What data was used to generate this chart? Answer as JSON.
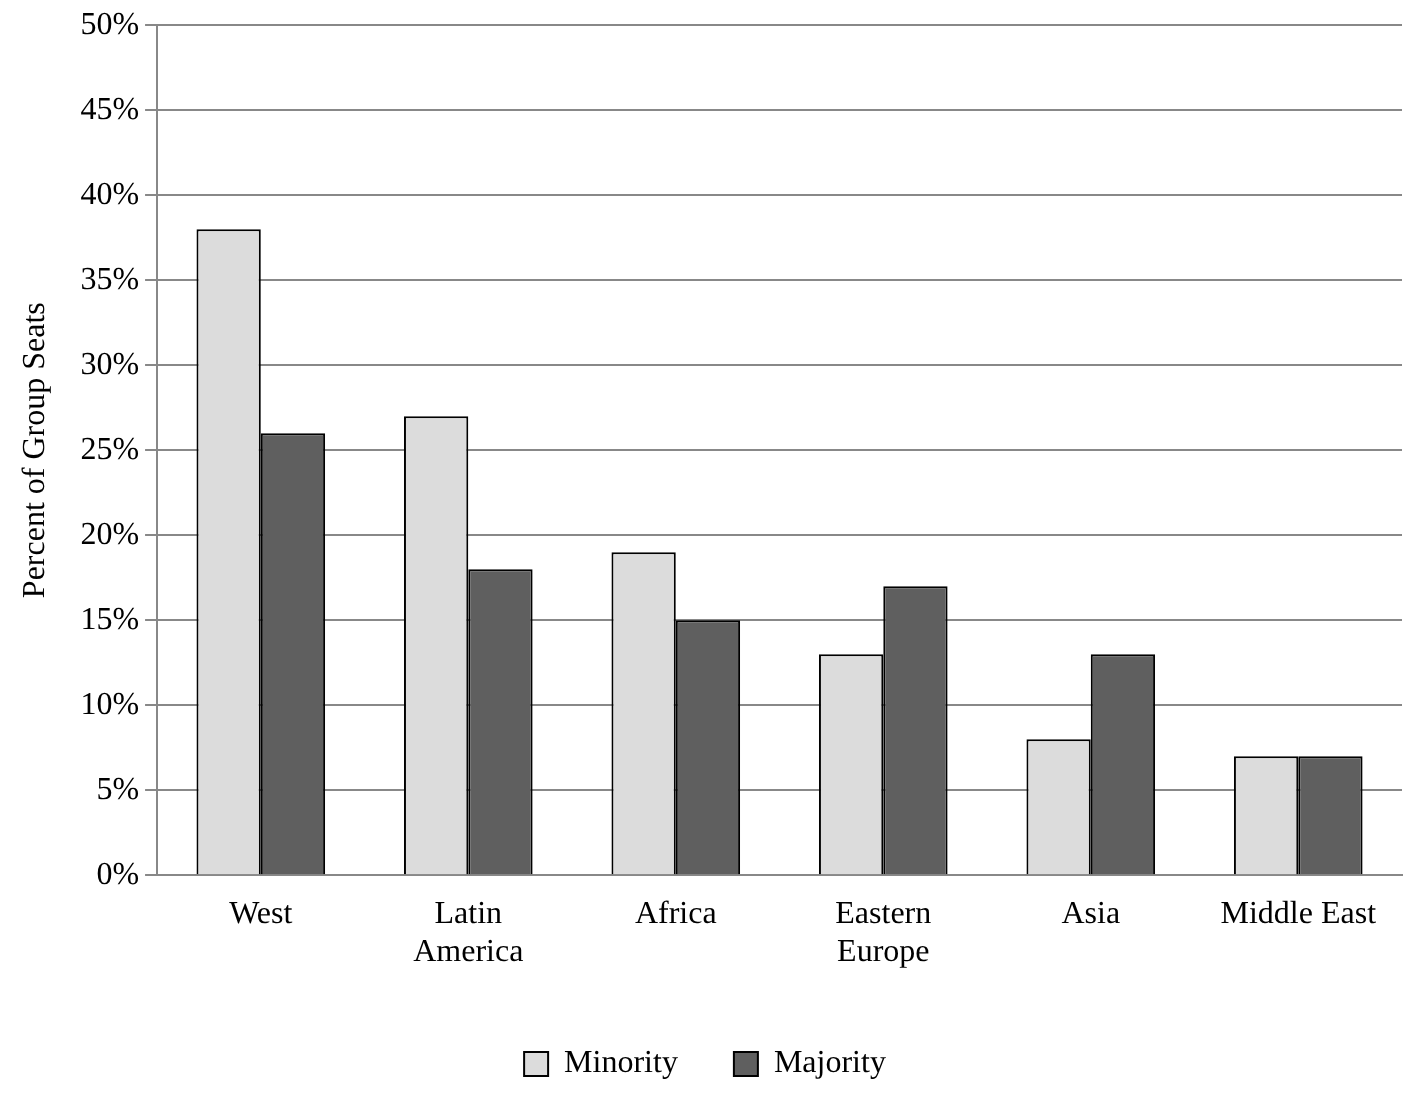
{
  "chart_data": {
    "type": "bar",
    "ylabel": "Percent of Group Seats",
    "categories": [
      "West",
      "Latin America",
      "Africa",
      "Eastern Europe",
      "Asia",
      "Middle East"
    ],
    "series": [
      {
        "name": "Minority",
        "color": "#dcdcdc",
        "values": [
          38,
          27,
          19,
          13,
          8,
          7
        ]
      },
      {
        "name": "Majority",
        "color": "#5f5f5f",
        "values": [
          26,
          18,
          15,
          17,
          13,
          7
        ]
      }
    ],
    "ylim": [
      0,
      50
    ],
    "yticks": [
      {
        "value": 0,
        "label": "0%"
      },
      {
        "value": 5,
        "label": "5%"
      },
      {
        "value": 10,
        "label": "10%"
      },
      {
        "value": 15,
        "label": "15%"
      },
      {
        "value": 20,
        "label": "20%"
      },
      {
        "value": 25,
        "label": "25%"
      },
      {
        "value": 30,
        "label": "30%"
      },
      {
        "value": 35,
        "label": "35%"
      },
      {
        "value": 40,
        "label": "40%"
      },
      {
        "value": 45,
        "label": "45%"
      },
      {
        "value": 50,
        "label": "50%"
      }
    ],
    "grid": "y",
    "legend": "bottom"
  }
}
